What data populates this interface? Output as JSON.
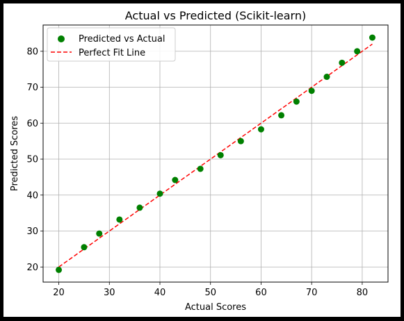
{
  "chart_data": {
    "type": "scatter",
    "title": "Actual vs Predicted (Scikit-learn)",
    "xlabel": "Actual Scores",
    "ylabel": "Predicted Scores",
    "xlim": [
      16.9,
      85.1
    ],
    "ylim": [
      15.8,
      87.3
    ],
    "xticks": [
      20,
      30,
      40,
      50,
      60,
      70,
      80
    ],
    "yticks": [
      20,
      30,
      40,
      50,
      60,
      70,
      80
    ],
    "xtick_labels": [
      "20",
      "30",
      "40",
      "50",
      "60",
      "70",
      "80"
    ],
    "ytick_labels": [
      "20",
      "30",
      "40",
      "50",
      "60",
      "70",
      "80"
    ],
    "grid": true,
    "legend_position": "upper-left",
    "series": [
      {
        "name": "Predicted vs Actual",
        "kind": "scatter",
        "color": "#008000",
        "x": [
          20,
          25,
          28,
          32,
          36,
          40,
          43,
          48,
          52,
          56,
          60,
          64,
          67,
          70,
          73,
          76,
          79,
          82
        ],
        "y": [
          19.2,
          25.5,
          29.3,
          33.2,
          36.5,
          40.4,
          44.2,
          47.3,
          51.1,
          55.0,
          58.3,
          62.2,
          66.0,
          69.0,
          72.9,
          76.8,
          80.0,
          83.8
        ]
      },
      {
        "name": "Perfect Fit Line",
        "kind": "line",
        "color": "#ff0000",
        "linestyle": "dashed",
        "x": [
          20,
          82
        ],
        "y": [
          20,
          82
        ]
      }
    ]
  }
}
